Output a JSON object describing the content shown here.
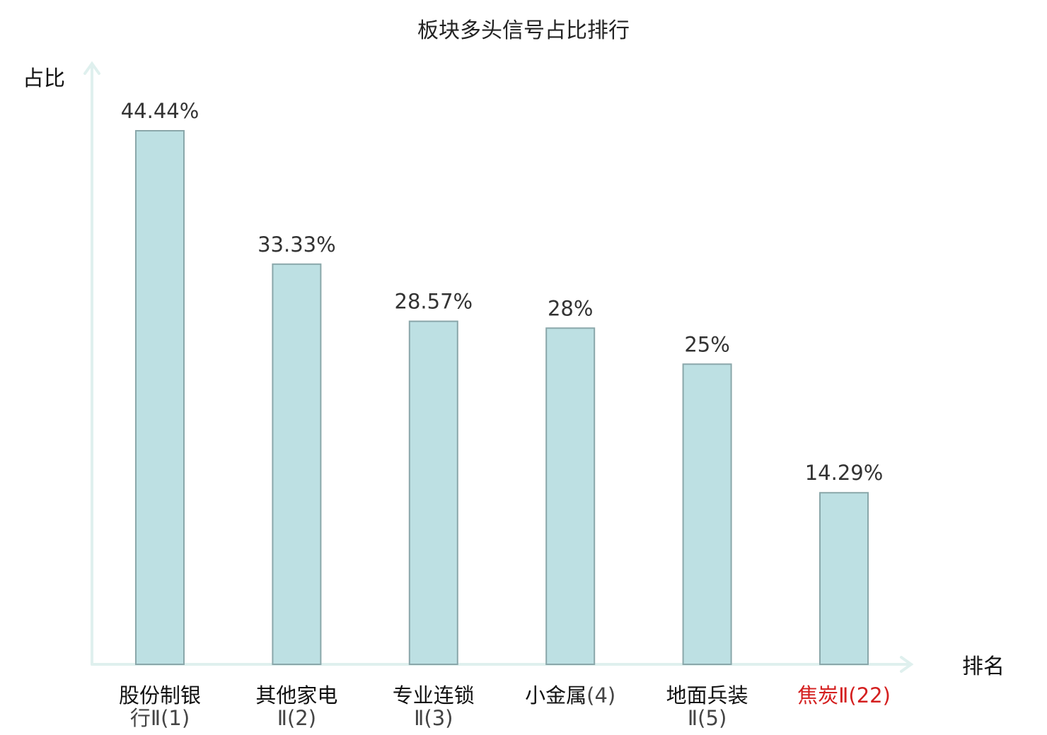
{
  "chart_data": {
    "type": "bar",
    "title": "板块多头信号占比排行",
    "ylabel": "占比",
    "xlabel": "排名",
    "ylim": [
      0,
      50
    ],
    "grid": false,
    "categories": [
      {
        "main": "股份制银",
        "sub": "行Ⅱ(1)",
        "highlight": false
      },
      {
        "main": "其他家电",
        "sub": "Ⅱ(2)",
        "highlight": false
      },
      {
        "main": "专业连锁",
        "sub": "Ⅱ(3)",
        "highlight": false
      },
      {
        "main": "小金属",
        "sub": "(4)",
        "highlight": false,
        "inline": true
      },
      {
        "main": "地面兵装",
        "sub": "Ⅱ(5)",
        "highlight": false
      },
      {
        "main": "焦炭Ⅱ",
        "sub": "(22)",
        "highlight": true,
        "inline": true
      }
    ],
    "values": [
      44.44,
      33.33,
      28.57,
      28,
      25,
      14.29
    ],
    "value_labels": [
      "44.44%",
      "33.33%",
      "28.57%",
      "28%",
      "25%",
      "14.29%"
    ]
  },
  "colors": {
    "bar_fill": "#bde0e3",
    "bar_stroke": "#8aa7aa",
    "axis": "#dff0ee",
    "highlight": "#d42020",
    "text": "#111111"
  }
}
